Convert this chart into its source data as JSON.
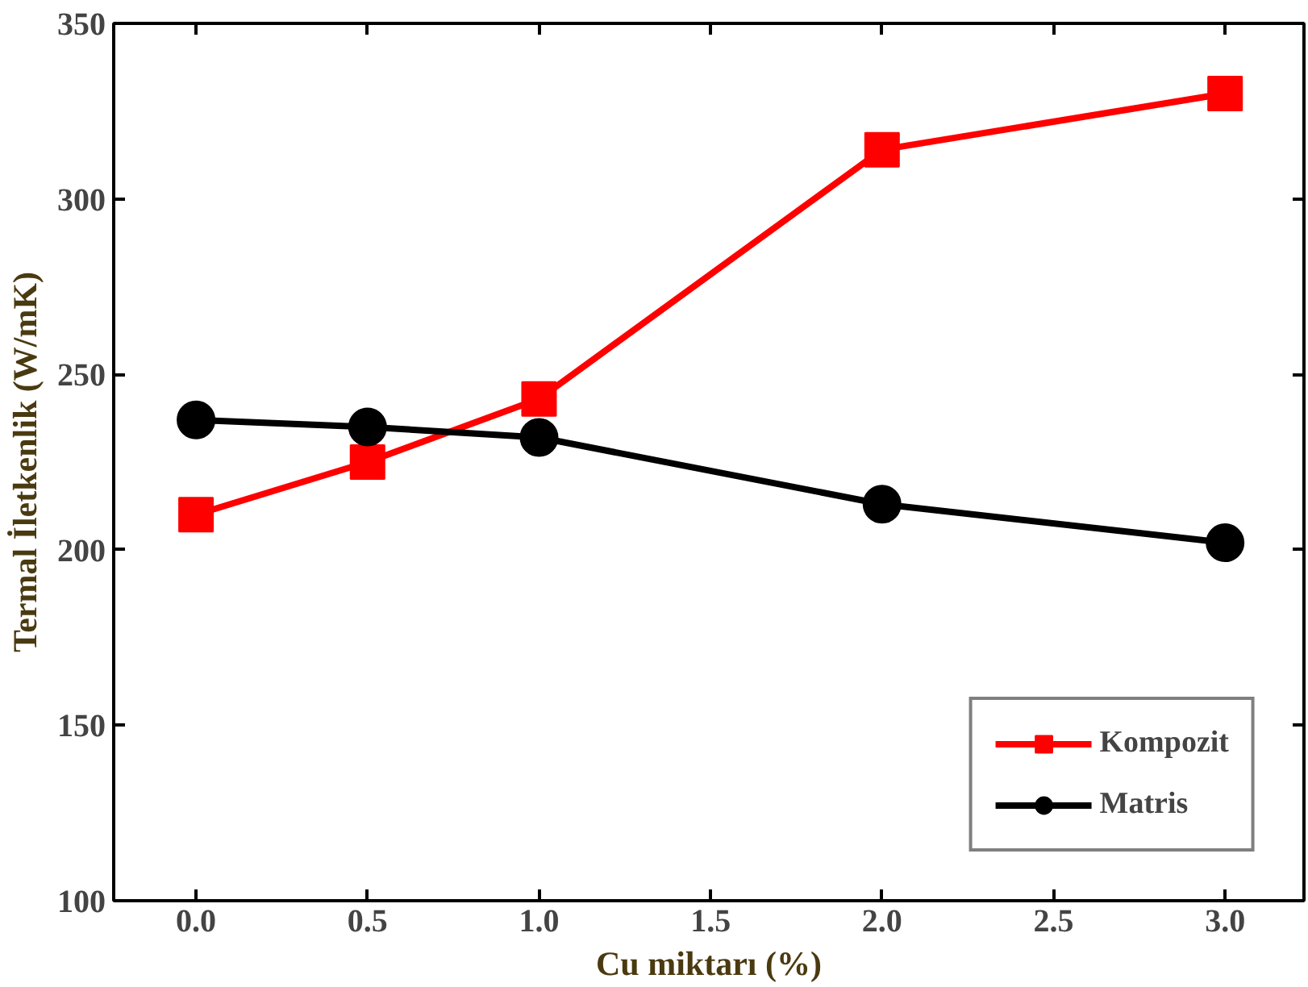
{
  "chart_data": {
    "type": "line",
    "xlabel": "Cu miktarı (%)",
    "ylabel": "Termal İletkenlik (W/mK)",
    "x": [
      0,
      0.5,
      1,
      2,
      3
    ],
    "series": [
      {
        "name": "Kompozit",
        "color": "#ff0000",
        "marker": "square",
        "values": [
          210,
          225,
          243,
          314,
          330
        ]
      },
      {
        "name": "Matris",
        "color": "#000000",
        "marker": "circle",
        "values": [
          237,
          235,
          232,
          213,
          202
        ]
      }
    ],
    "xlim": [
      -0.24,
      3.23
    ],
    "xticks": [
      {
        "value": 0,
        "label": "0.0"
      },
      {
        "value": 0.5,
        "label": "0.5"
      },
      {
        "value": 1,
        "label": "1.0"
      },
      {
        "value": 1.5,
        "label": "1.5"
      },
      {
        "value": 2,
        "label": "2.0"
      },
      {
        "value": 2.5,
        "label": "2.5"
      },
      {
        "value": 3,
        "label": "3.0"
      }
    ],
    "ylim": [
      100,
      350
    ],
    "yticks": [
      100,
      150,
      200,
      250,
      300,
      350
    ],
    "grid": false,
    "legend": "bottom right",
    "line_style": "solid"
  }
}
